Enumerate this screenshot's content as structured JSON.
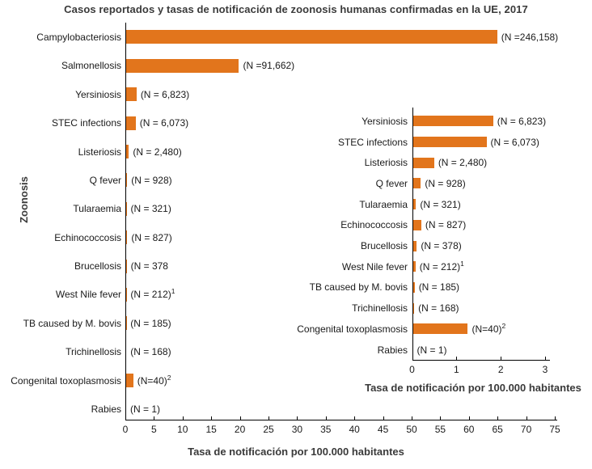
{
  "title": "Casos reportados y tasas de notificación de zoonosis humanas confirmadas en la UE, 2017",
  "colors": {
    "bar": "#E2751C",
    "axis": "#000000",
    "text": "#1A1A1A",
    "heading": "#3A3A3A"
  },
  "chart_data": [
    {
      "type": "bar",
      "orientation": "horizontal",
      "name": "main-chart",
      "title": "Casos reportados y tasas de notificación de zoonosis humanas confirmadas en la UE, 2017",
      "xlabel": "Tasa de notificación por 100.000 habitantes",
      "ylabel": "Zoonosis",
      "xlim": [
        0,
        75
      ],
      "xticks": [
        0,
        5,
        10,
        15,
        20,
        25,
        30,
        35,
        40,
        45,
        50,
        55,
        60,
        65,
        70,
        75
      ],
      "grid": false,
      "legend": false,
      "categories": [
        "Campylobacteriosis",
        "Salmonellosis",
        "Yersiniosis",
        "STEC infections",
        "Listeriosis",
        "Q fever",
        "Tularaemia",
        "Echinococcosis",
        "Brucellosis",
        "West Nile fever",
        "TB caused by M. bovis",
        "Trichinellosis",
        "Congenital toxoplasmosis",
        "Rabies"
      ],
      "values": [
        64.8,
        19.7,
        1.81,
        1.66,
        0.48,
        0.18,
        0.07,
        0.19,
        0.09,
        0.06,
        0.04,
        0.03,
        1.24,
        0
      ],
      "n_labels": [
        "(N =246,158)",
        "(N =91,662)",
        "(N = 6,823)",
        "(N = 6,073)",
        "(N = 2,480)",
        "(N = 928)",
        "(N = 321)",
        "(N = 827)",
        "(N = 378",
        "(N = 212)",
        "(N = 185)",
        "(N = 168)",
        "(N=40)",
        "(N = 1)"
      ],
      "n_sups": [
        "",
        "",
        "",
        "",
        "",
        "",
        "",
        "",
        "",
        "1",
        "",
        "",
        "2",
        ""
      ]
    },
    {
      "type": "bar",
      "orientation": "horizontal",
      "name": "inset-chart",
      "xlabel": "Tasa de notificación por 100.000 habitantes",
      "xlim": [
        0,
        3
      ],
      "xticks": [
        0,
        1,
        2,
        3
      ],
      "grid": false,
      "legend": false,
      "categories": [
        "Yersiniosis",
        "STEC infections",
        "Listeriosis",
        "Q fever",
        "Tularaemia",
        "Echinococcosis",
        "Brucellosis",
        "West Nile fever",
        "TB caused by M. bovis",
        "Trichinellosis",
        "Congenital toxoplasmosis",
        "Rabies"
      ],
      "values": [
        1.81,
        1.66,
        0.48,
        0.18,
        0.07,
        0.19,
        0.09,
        0.06,
        0.04,
        0.03,
        1.24,
        0
      ],
      "n_labels": [
        "(N = 6,823)",
        "(N = 6,073)",
        "(N = 2,480)",
        "(N = 928)",
        "(N = 321)",
        "(N = 827)",
        "(N = 378)",
        "(N = 212)",
        "(N = 185)",
        "(N = 168)",
        "(N=40)",
        "(N = 1)"
      ],
      "n_sups": [
        "",
        "",
        "",
        "",
        "",
        "",
        "",
        "1",
        "",
        "",
        "2",
        ""
      ]
    }
  ]
}
